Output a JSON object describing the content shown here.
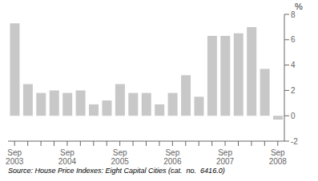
{
  "chart_data": {
    "type": "bar",
    "ylabel": "%",
    "annotations": [
      "Source: House Price Indexes: Eight Capital Cities (cat.  no.  6416.0)"
    ],
    "categories": [
      "Sep\n2003",
      null,
      null,
      null,
      "Sep\n2004",
      null,
      null,
      null,
      "Sep\n2005",
      null,
      null,
      null,
      "Sep\n2006",
      null,
      null,
      null,
      "Sep\n2007",
      null,
      null,
      null,
      "Sep\n2008"
    ],
    "values": [
      7.3,
      2.5,
      1.8,
      2.0,
      1.8,
      2.0,
      0.9,
      1.2,
      2.5,
      1.8,
      1.8,
      0.9,
      1.8,
      3.2,
      1.5,
      6.3,
      6.3,
      6.5,
      7.0,
      3.7,
      -0.3
    ],
    "color": "#c8c8c8",
    "ylim": [
      -2,
      8
    ],
    "yticks": [
      -2,
      0,
      2,
      4,
      6,
      8
    ],
    "grid": false
  }
}
